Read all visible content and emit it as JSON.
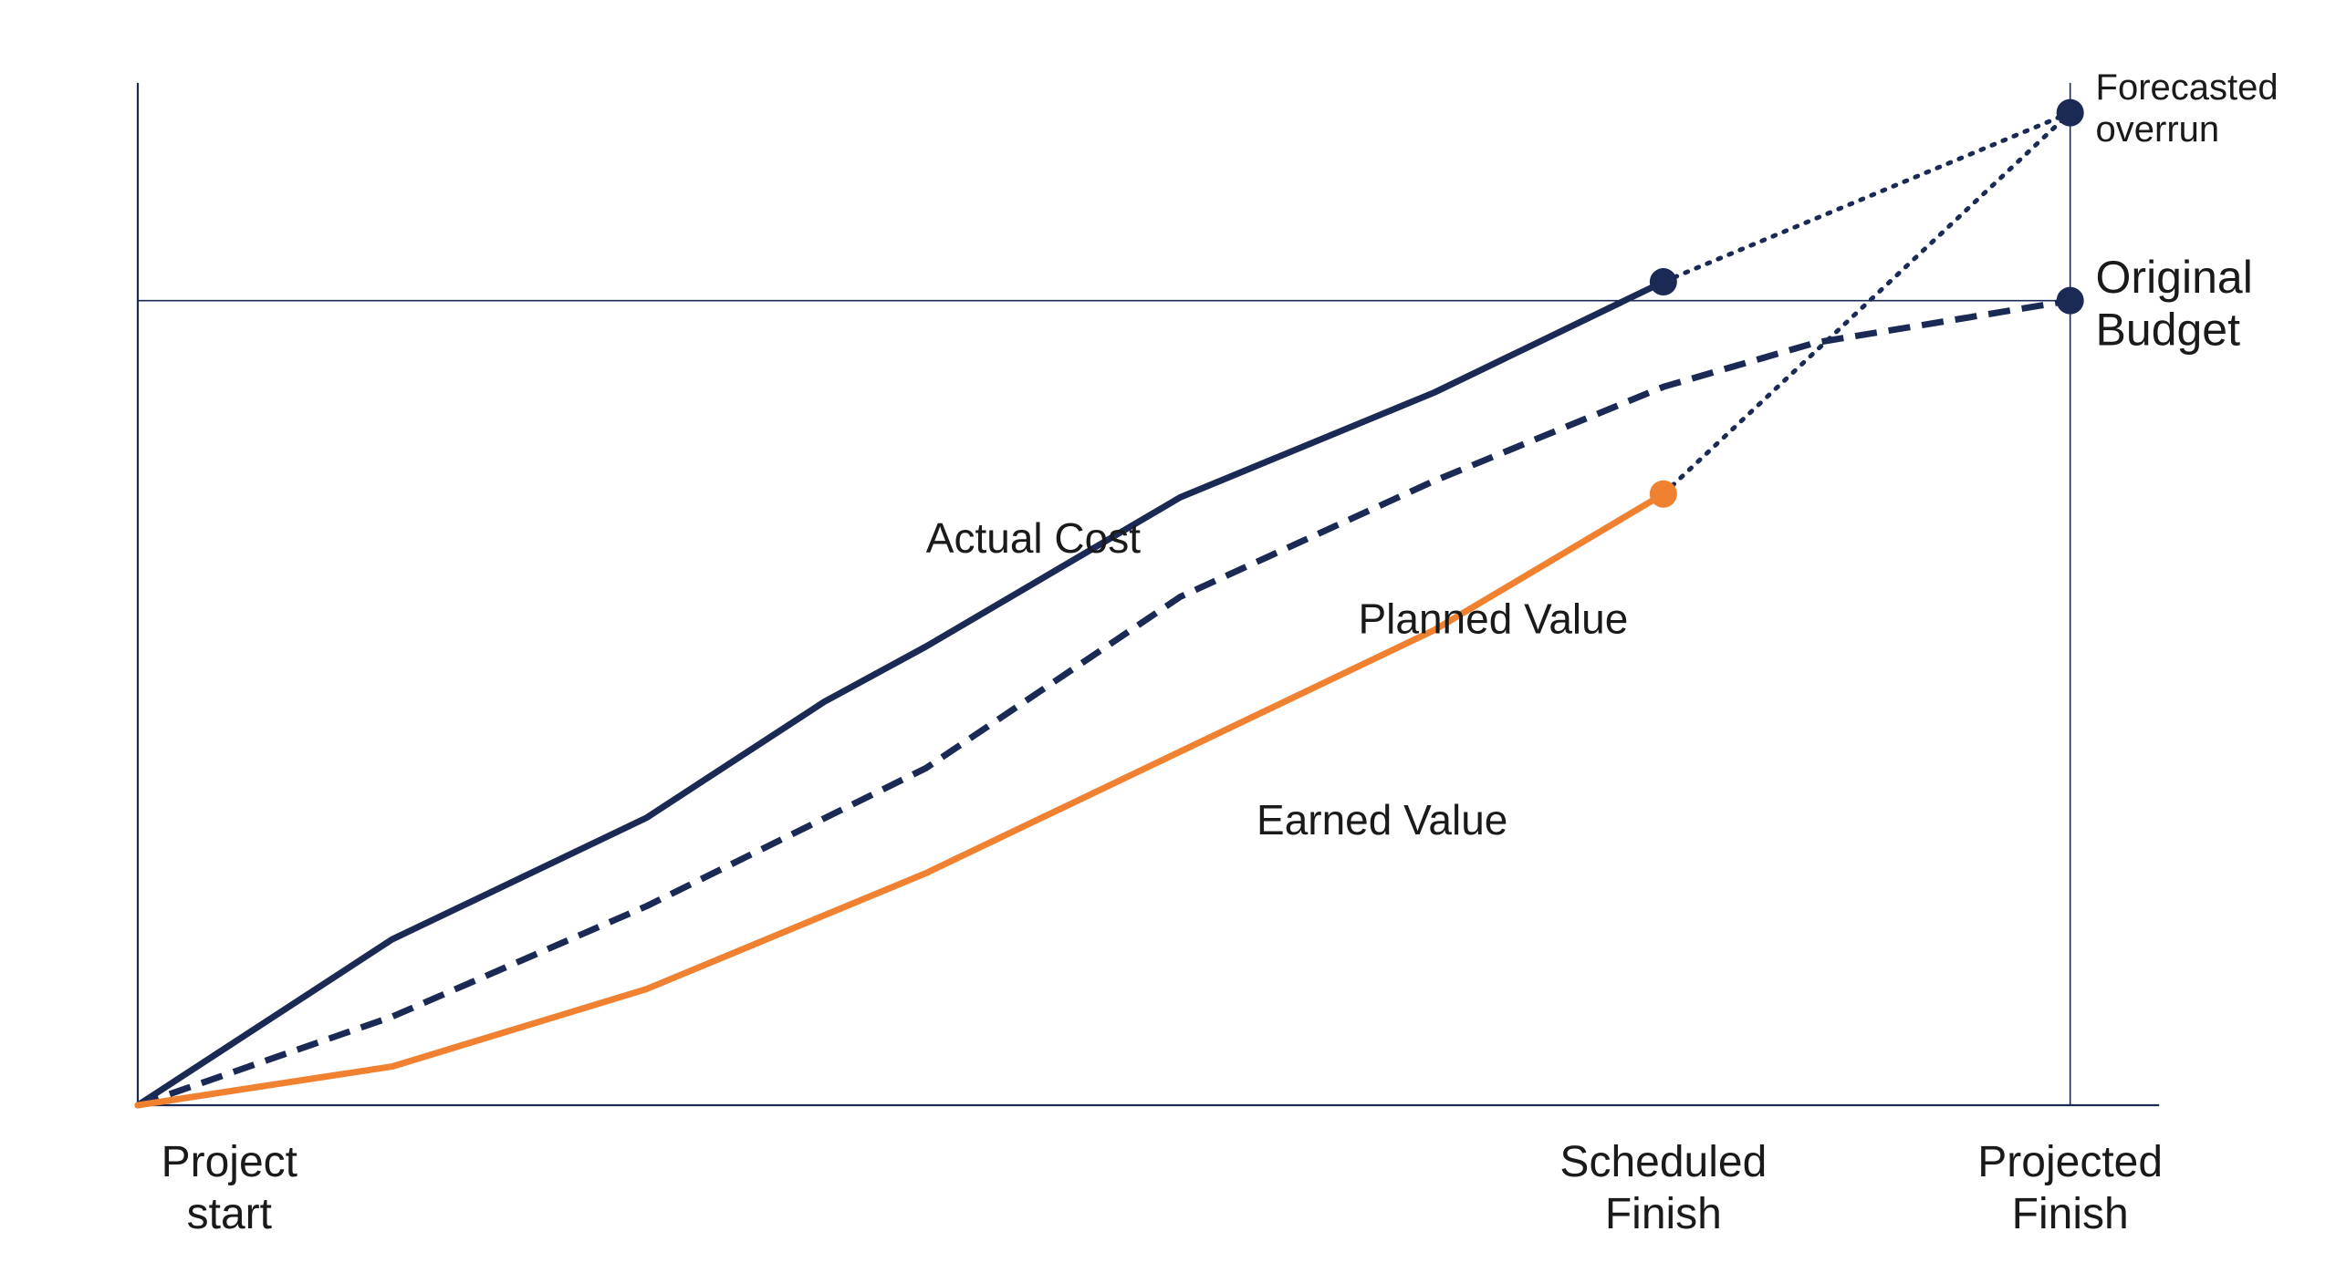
{
  "chart_data": {
    "type": "line",
    "title": "",
    "xlabel": "",
    "ylabel": "",
    "grid": false,
    "colors": {
      "navy": "#1b2a55",
      "orange": "#f08130",
      "axis": "#1b2a55"
    },
    "x_ticks": [
      {
        "x": 0,
        "line1": "Project",
        "line2": "start"
      },
      {
        "x": 6,
        "line1": "Scheduled",
        "line2": "Finish"
      },
      {
        "x": 7.6,
        "line1": "Projected",
        "line2": "Finish"
      }
    ],
    "series": [
      {
        "name": "Actual Cost",
        "style": "solid",
        "color": "#1b2a55",
        "points": [
          [
            0,
            0
          ],
          [
            1,
            15
          ],
          [
            2,
            26
          ],
          [
            2.7,
            36.5
          ],
          [
            3.1,
            41.5
          ],
          [
            4.1,
            55
          ],
          [
            5.1,
            64.5
          ],
          [
            6,
            74.5
          ]
        ]
      },
      {
        "name": "Planned Value",
        "style": "dashed",
        "color": "#1b2a55",
        "points": [
          [
            0,
            0
          ],
          [
            1,
            8
          ],
          [
            2,
            18
          ],
          [
            3.1,
            30.5
          ],
          [
            4.1,
            46
          ],
          [
            5.1,
            56.5
          ],
          [
            6,
            65
          ],
          [
            6.6,
            69
          ],
          [
            7.6,
            72.8
          ]
        ]
      },
      {
        "name": "Earned Value",
        "style": "solid",
        "color": "#f08130",
        "points": [
          [
            0,
            0
          ],
          [
            1,
            3.5
          ],
          [
            2,
            10.5
          ],
          [
            3.1,
            21
          ],
          [
            4.1,
            32
          ],
          [
            5.1,
            43
          ],
          [
            6,
            55.3
          ]
        ]
      }
    ],
    "projections": [
      {
        "from": [
          6,
          74.5
        ],
        "to": [
          7.6,
          89.8
        ],
        "style": "dotted",
        "color": "#1b2a55"
      },
      {
        "from": [
          6,
          55.3
        ],
        "to": [
          7.6,
          89.8
        ],
        "style": "dotted",
        "color": "#1b2a55"
      }
    ],
    "markers": [
      {
        "point": [
          6,
          74.5
        ],
        "color": "#1b2a55"
      },
      {
        "point": [
          6,
          55.3
        ],
        "color": "#f08130"
      },
      {
        "point": [
          7.6,
          89.8
        ],
        "color": "#1b2a55"
      },
      {
        "point": [
          7.6,
          72.8
        ],
        "color": "#1b2a55"
      }
    ],
    "reference_lines": [
      {
        "orientation": "horizontal",
        "y": 72.8
      },
      {
        "orientation": "vertical",
        "x": 7.6
      }
    ],
    "annotations": [
      {
        "lines": [
          "Actual Cost"
        ],
        "at": [
          3.1,
          50
        ],
        "size": "medium"
      },
      {
        "lines": [
          "Planned Value"
        ],
        "at": [
          4.8,
          42.7
        ],
        "size": "medium"
      },
      {
        "lines": [
          "Earned Value"
        ],
        "at": [
          4.4,
          24.5
        ],
        "size": "medium"
      },
      {
        "lines": [
          "Forecasted",
          "overrun"
        ],
        "at": [
          7.7,
          91
        ],
        "size": "small",
        "anchor": "start"
      },
      {
        "lines": [
          "Original",
          "Budget"
        ],
        "at": [
          7.7,
          73.5
        ],
        "size": "large",
        "anchor": "start"
      }
    ],
    "xlim": [
      0,
      8.1
    ],
    "ylim": [
      0,
      100
    ]
  }
}
